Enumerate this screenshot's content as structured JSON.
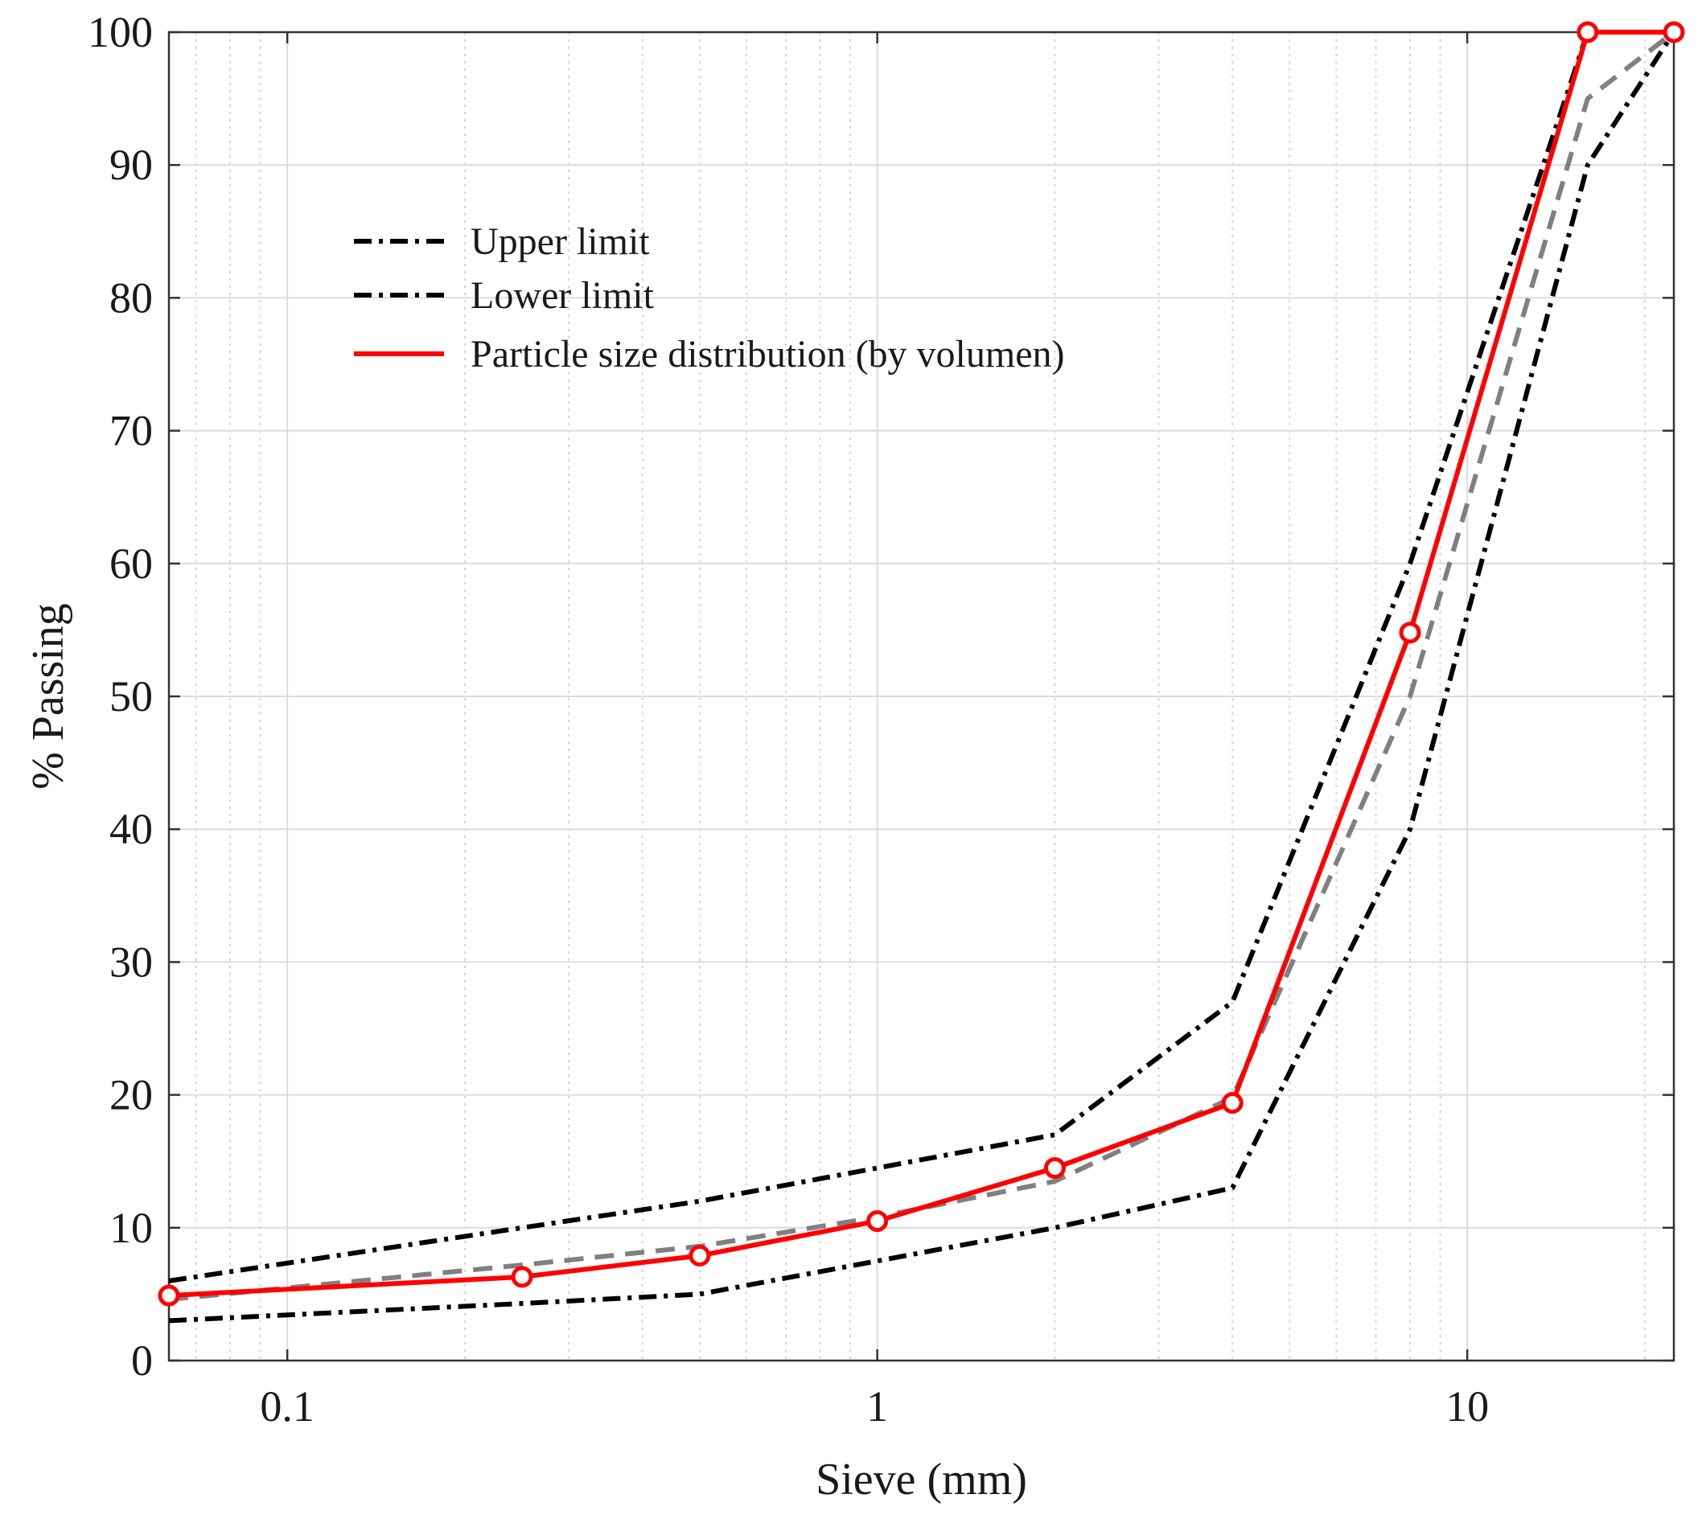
{
  "chart_data": {
    "type": "line",
    "title": "",
    "xlabel": "Sieve (mm)",
    "ylabel": "% Passing",
    "x_scale": "log",
    "xlim": [
      0.063,
      22.4
    ],
    "ylim": [
      0,
      100
    ],
    "x_ticks": [
      0.1,
      1,
      10
    ],
    "x_tick_labels": [
      "0.1",
      "1",
      "10"
    ],
    "y_ticks": [
      0,
      10,
      20,
      30,
      40,
      50,
      60,
      70,
      80,
      90,
      100
    ],
    "y_tick_labels": [
      "0",
      "10",
      "20",
      "30",
      "40",
      "50",
      "60",
      "70",
      "80",
      "90",
      "100"
    ],
    "grid": true,
    "legend_position": "upper-left",
    "x": [
      0.063,
      0.25,
      0.5,
      1,
      2,
      4,
      8,
      16,
      22.4
    ],
    "series": [
      {
        "name": "Upper limit",
        "values": [
          6,
          10,
          12,
          14.5,
          17,
          27,
          60,
          100,
          100
        ],
        "color": "#000000",
        "style": "dash-dot",
        "in_legend": true
      },
      {
        "name": "Lower limit",
        "values": [
          3,
          4.3,
          5,
          7.5,
          10,
          13,
          40,
          90,
          100
        ],
        "color": "#000000",
        "style": "dash-dot",
        "in_legend": true
      },
      {
        "name": "",
        "values": [
          4.6,
          7.2,
          8.6,
          10.8,
          13.5,
          19.8,
          50,
          95,
          100
        ],
        "color": "#808080",
        "style": "dashed",
        "in_legend": false
      },
      {
        "name": "Particle size distribution (by volumen)",
        "values": [
          4.9,
          6.3,
          7.9,
          10.5,
          14.5,
          19.4,
          54.8,
          100,
          100
        ],
        "color": "#ff0000",
        "style": "solid",
        "markers": "circle",
        "in_legend": true
      }
    ]
  }
}
